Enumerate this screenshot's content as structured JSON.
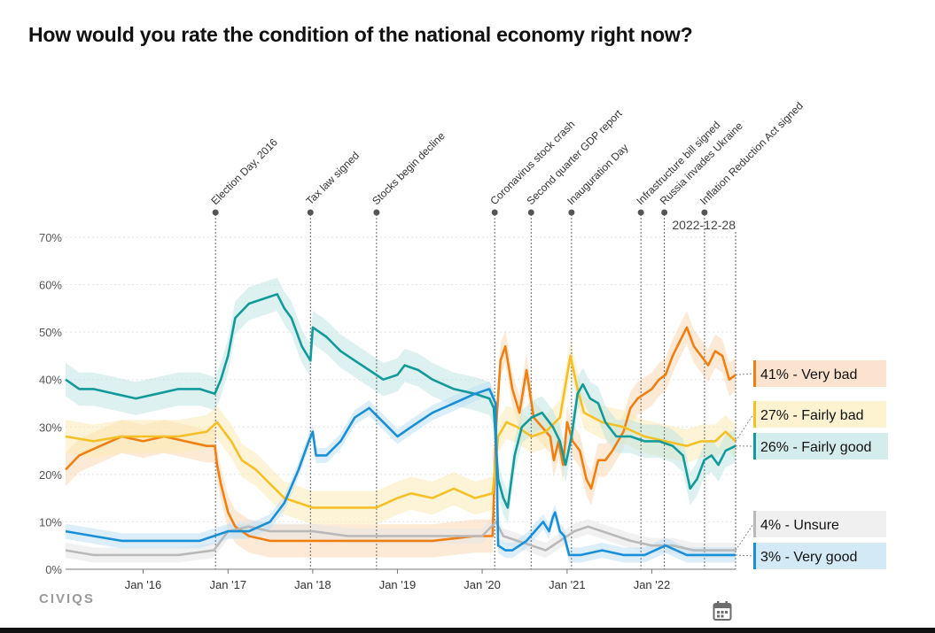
{
  "title": "How would you rate the condition of the national economy right now?",
  "brand": "CIVIQS",
  "icons": {
    "calendar": "calendar-icon"
  },
  "chart_data": {
    "type": "line",
    "x_type": "date",
    "xlim": [
      "2015-02-01",
      "2022-12-28"
    ],
    "ylim": [
      0,
      70
    ],
    "y_ticks": [
      0,
      10,
      20,
      30,
      40,
      50,
      60,
      70
    ],
    "y_tick_labels": [
      "0%",
      "10%",
      "20%",
      "30%",
      "40%",
      "50%",
      "60%",
      "70%"
    ],
    "x_ticks": [
      {
        "date": "2016-01-01",
        "label": "Jan '16"
      },
      {
        "date": "2017-01-01",
        "label": "Jan '17"
      },
      {
        "date": "2018-01-01",
        "label": "Jan '18"
      },
      {
        "date": "2019-01-01",
        "label": "Jan '19"
      },
      {
        "date": "2020-01-01",
        "label": "Jan '20"
      },
      {
        "date": "2021-01-01",
        "label": "Jan '21"
      },
      {
        "date": "2022-01-01",
        "label": "Jan '22"
      }
    ],
    "grid": true,
    "legend_position": "right",
    "end_date_label": "2022-12-28",
    "events": [
      {
        "label": "Election Day, 2016",
        "date": "2016-11-08"
      },
      {
        "label": "Tax law signed",
        "date": "2017-12-22"
      },
      {
        "label": "Stocks begin decline",
        "date": "2018-10-03"
      },
      {
        "label": "Coronavirus stock crash",
        "date": "2020-02-24"
      },
      {
        "label": "Second quarter GDP report",
        "date": "2020-07-30"
      },
      {
        "label": "Inauguration Day",
        "date": "2021-01-20"
      },
      {
        "label": "Infrastructure bill signed",
        "date": "2021-11-15"
      },
      {
        "label": "Russia invades Ukraine",
        "date": "2022-02-24"
      },
      {
        "label": "Inflation Reduction Act signed",
        "date": "2022-08-16"
      }
    ],
    "series": [
      {
        "name": "Very bad",
        "end_label": "41% - Very bad",
        "color": "#f07f12",
        "band_color": "#fbd9b5",
        "box_color": "#fbe3cf",
        "points": [
          [
            "2015-02-01",
            21
          ],
          [
            "2015-04-01",
            24
          ],
          [
            "2015-07-01",
            26
          ],
          [
            "2015-10-01",
            28
          ],
          [
            "2016-01-01",
            27
          ],
          [
            "2016-04-01",
            28
          ],
          [
            "2016-07-01",
            27
          ],
          [
            "2016-10-01",
            26
          ],
          [
            "2016-11-05",
            26
          ],
          [
            "2016-11-15",
            22
          ],
          [
            "2016-12-01",
            18
          ],
          [
            "2017-01-01",
            12
          ],
          [
            "2017-02-01",
            9
          ],
          [
            "2017-04-01",
            7
          ],
          [
            "2017-07-01",
            6
          ],
          [
            "2017-10-01",
            6
          ],
          [
            "2018-01-01",
            6
          ],
          [
            "2018-06-01",
            6
          ],
          [
            "2019-01-01",
            6
          ],
          [
            "2019-06-01",
            6
          ],
          [
            "2019-12-01",
            7
          ],
          [
            "2020-02-15",
            7
          ],
          [
            "2020-03-01",
            30
          ],
          [
            "2020-03-20",
            44
          ],
          [
            "2020-04-10",
            47
          ],
          [
            "2020-05-10",
            38
          ],
          [
            "2020-06-10",
            33
          ],
          [
            "2020-07-10",
            42
          ],
          [
            "2020-08-10",
            32
          ],
          [
            "2020-09-15",
            30
          ],
          [
            "2020-10-20",
            28
          ],
          [
            "2020-11-05",
            23
          ],
          [
            "2020-11-25",
            27
          ],
          [
            "2020-12-15",
            22
          ],
          [
            "2021-01-01",
            31
          ],
          [
            "2021-01-25",
            27
          ],
          [
            "2021-02-25",
            25
          ],
          [
            "2021-03-25",
            19
          ],
          [
            "2021-04-15",
            17
          ],
          [
            "2021-05-15",
            23
          ],
          [
            "2021-06-15",
            23
          ],
          [
            "2021-07-15",
            25
          ],
          [
            "2021-09-01",
            29
          ],
          [
            "2021-10-01",
            34
          ],
          [
            "2021-11-01",
            36
          ],
          [
            "2021-12-01",
            37
          ],
          [
            "2022-01-01",
            38
          ],
          [
            "2022-02-01",
            40
          ],
          [
            "2022-03-01",
            41
          ],
          [
            "2022-04-01",
            45
          ],
          [
            "2022-05-01",
            48
          ],
          [
            "2022-06-01",
            51
          ],
          [
            "2022-07-01",
            47
          ],
          [
            "2022-08-01",
            45
          ],
          [
            "2022-09-01",
            43
          ],
          [
            "2022-10-01",
            46
          ],
          [
            "2022-11-01",
            45
          ],
          [
            "2022-12-01",
            40
          ],
          [
            "2022-12-28",
            41
          ]
        ]
      },
      {
        "name": "Fairly bad",
        "end_label": "27% - Fairly bad",
        "color": "#f5c026",
        "band_color": "#fbeab5",
        "box_color": "#fdf3d0",
        "points": [
          [
            "2015-02-01",
            28
          ],
          [
            "2015-06-01",
            27
          ],
          [
            "2015-10-01",
            28
          ],
          [
            "2016-01-01",
            28
          ],
          [
            "2016-06-01",
            28
          ],
          [
            "2016-10-01",
            29
          ],
          [
            "2016-11-15",
            31
          ],
          [
            "2016-12-15",
            29
          ],
          [
            "2017-01-15",
            27
          ],
          [
            "2017-03-01",
            23
          ],
          [
            "2017-05-01",
            21
          ],
          [
            "2017-07-01",
            18
          ],
          [
            "2017-09-01",
            15
          ],
          [
            "2017-11-01",
            14
          ],
          [
            "2018-01-01",
            13
          ],
          [
            "2018-03-01",
            13
          ],
          [
            "2018-06-01",
            13
          ],
          [
            "2018-10-01",
            13
          ],
          [
            "2019-01-01",
            15
          ],
          [
            "2019-03-01",
            16
          ],
          [
            "2019-06-01",
            15
          ],
          [
            "2019-09-01",
            17
          ],
          [
            "2019-12-01",
            15
          ],
          [
            "2020-02-15",
            16
          ],
          [
            "2020-03-10",
            28
          ],
          [
            "2020-04-15",
            31
          ],
          [
            "2020-06-01",
            30
          ],
          [
            "2020-08-01",
            28
          ],
          [
            "2020-10-01",
            29
          ],
          [
            "2020-12-01",
            32
          ],
          [
            "2021-01-15",
            45
          ],
          [
            "2021-02-15",
            38
          ],
          [
            "2021-03-15",
            33
          ],
          [
            "2021-06-01",
            31
          ],
          [
            "2021-09-01",
            30
          ],
          [
            "2021-12-01",
            28
          ],
          [
            "2022-03-01",
            27
          ],
          [
            "2022-06-01",
            26
          ],
          [
            "2022-08-01",
            27
          ],
          [
            "2022-10-01",
            27
          ],
          [
            "2022-11-15",
            29
          ],
          [
            "2022-12-28",
            27
          ]
        ]
      },
      {
        "name": "Fairly good",
        "end_label": "26% - Fairly good",
        "color": "#129a9a",
        "band_color": "#bfe5e4",
        "box_color": "#d5ecec",
        "points": [
          [
            "2015-02-01",
            40
          ],
          [
            "2015-04-01",
            38
          ],
          [
            "2015-06-01",
            38
          ],
          [
            "2015-09-01",
            37
          ],
          [
            "2015-12-01",
            36
          ],
          [
            "2016-03-01",
            37
          ],
          [
            "2016-06-01",
            38
          ],
          [
            "2016-09-01",
            38
          ],
          [
            "2016-11-05",
            37
          ],
          [
            "2016-12-01",
            40
          ],
          [
            "2017-01-01",
            45
          ],
          [
            "2017-02-01",
            53
          ],
          [
            "2017-04-01",
            56
          ],
          [
            "2017-06-01",
            57
          ],
          [
            "2017-08-01",
            58
          ],
          [
            "2017-09-01",
            55
          ],
          [
            "2017-10-01",
            53
          ],
          [
            "2017-11-15",
            47
          ],
          [
            "2017-12-22",
            44
          ],
          [
            "2018-01-01",
            51
          ],
          [
            "2018-03-01",
            49
          ],
          [
            "2018-05-01",
            46
          ],
          [
            "2018-07-01",
            44
          ],
          [
            "2018-09-01",
            42
          ],
          [
            "2018-11-01",
            40
          ],
          [
            "2019-01-01",
            41
          ],
          [
            "2019-02-01",
            43
          ],
          [
            "2019-04-01",
            42
          ],
          [
            "2019-06-01",
            40
          ],
          [
            "2019-09-01",
            38
          ],
          [
            "2019-12-01",
            37
          ],
          [
            "2020-02-01",
            36
          ],
          [
            "2020-02-20",
            34
          ],
          [
            "2020-03-10",
            19
          ],
          [
            "2020-04-01",
            15
          ],
          [
            "2020-04-20",
            13
          ],
          [
            "2020-05-20",
            24
          ],
          [
            "2020-06-20",
            30
          ],
          [
            "2020-08-01",
            32
          ],
          [
            "2020-09-15",
            33
          ],
          [
            "2020-11-01",
            30
          ],
          [
            "2020-12-01",
            27
          ],
          [
            "2020-12-25",
            22
          ],
          [
            "2021-01-20",
            28
          ],
          [
            "2021-02-15",
            37
          ],
          [
            "2021-03-10",
            39
          ],
          [
            "2021-04-10",
            36
          ],
          [
            "2021-05-15",
            35
          ],
          [
            "2021-06-15",
            31
          ],
          [
            "2021-08-01",
            28
          ],
          [
            "2021-10-01",
            28
          ],
          [
            "2021-12-01",
            27
          ],
          [
            "2022-02-01",
            27
          ],
          [
            "2022-04-01",
            26
          ],
          [
            "2022-05-15",
            24
          ],
          [
            "2022-06-15",
            17
          ],
          [
            "2022-07-15",
            19
          ],
          [
            "2022-08-15",
            23
          ],
          [
            "2022-09-15",
            24
          ],
          [
            "2022-10-15",
            22
          ],
          [
            "2022-11-15",
            25
          ],
          [
            "2022-12-28",
            26
          ]
        ]
      },
      {
        "name": "Unsure",
        "end_label": "4% - Unsure",
        "color": "#b9b9b9",
        "band_color": "#e6e6e6",
        "box_color": "#f0f0f0",
        "points": [
          [
            "2015-02-01",
            4
          ],
          [
            "2015-06-01",
            3
          ],
          [
            "2016-01-01",
            3
          ],
          [
            "2016-06-01",
            3
          ],
          [
            "2016-11-01",
            4
          ],
          [
            "2017-01-01",
            8
          ],
          [
            "2017-04-01",
            9
          ],
          [
            "2017-07-01",
            8
          ],
          [
            "2018-01-01",
            8
          ],
          [
            "2018-06-01",
            7
          ],
          [
            "2019-01-01",
            7
          ],
          [
            "2019-06-01",
            7
          ],
          [
            "2020-01-01",
            7
          ],
          [
            "2020-03-01",
            10
          ],
          [
            "2020-04-01",
            7
          ],
          [
            "2020-06-01",
            6
          ],
          [
            "2020-08-01",
            5
          ],
          [
            "2020-10-01",
            4
          ],
          [
            "2020-12-01",
            6
          ],
          [
            "2021-02-01",
            8
          ],
          [
            "2021-04-01",
            9
          ],
          [
            "2021-06-01",
            8
          ],
          [
            "2021-08-01",
            7
          ],
          [
            "2021-10-01",
            6
          ],
          [
            "2022-01-01",
            5
          ],
          [
            "2022-04-01",
            5
          ],
          [
            "2022-07-01",
            4
          ],
          [
            "2022-10-01",
            4
          ],
          [
            "2022-12-28",
            4
          ]
        ]
      },
      {
        "name": "Very good",
        "end_label": "3% - Very good",
        "color": "#1a8fd6",
        "band_color": "#bfe0f5",
        "box_color": "#d3e9f6",
        "points": [
          [
            "2015-02-01",
            8
          ],
          [
            "2015-06-01",
            7
          ],
          [
            "2015-10-01",
            6
          ],
          [
            "2016-03-01",
            6
          ],
          [
            "2016-09-01",
            6
          ],
          [
            "2016-11-01",
            7
          ],
          [
            "2017-01-01",
            8
          ],
          [
            "2017-04-01",
            8
          ],
          [
            "2017-07-01",
            10
          ],
          [
            "2017-09-01",
            14
          ],
          [
            "2017-11-01",
            21
          ],
          [
            "2017-12-15",
            27
          ],
          [
            "2018-01-01",
            29
          ],
          [
            "2018-01-15",
            24
          ],
          [
            "2018-03-01",
            24
          ],
          [
            "2018-05-01",
            27
          ],
          [
            "2018-07-01",
            32
          ],
          [
            "2018-09-01",
            34
          ],
          [
            "2018-11-01",
            31
          ],
          [
            "2019-01-01",
            28
          ],
          [
            "2019-03-01",
            30
          ],
          [
            "2019-06-01",
            33
          ],
          [
            "2019-09-01",
            35
          ],
          [
            "2019-12-01",
            37
          ],
          [
            "2020-02-01",
            38
          ],
          [
            "2020-02-28",
            35
          ],
          [
            "2020-03-10",
            5
          ],
          [
            "2020-04-10",
            4
          ],
          [
            "2020-05-10",
            4
          ],
          [
            "2020-07-10",
            6
          ],
          [
            "2020-08-15",
            8
          ],
          [
            "2020-09-20",
            10
          ],
          [
            "2020-10-15",
            8
          ],
          [
            "2020-11-01",
            11
          ],
          [
            "2020-11-10",
            12
          ],
          [
            "2020-12-01",
            8
          ],
          [
            "2020-12-20",
            7
          ],
          [
            "2021-01-10",
            3
          ],
          [
            "2021-03-01",
            3
          ],
          [
            "2021-06-01",
            4
          ],
          [
            "2021-09-01",
            3
          ],
          [
            "2021-12-01",
            3
          ],
          [
            "2022-03-01",
            5
          ],
          [
            "2022-06-01",
            3
          ],
          [
            "2022-09-01",
            3
          ],
          [
            "2022-12-28",
            3
          ]
        ]
      }
    ]
  }
}
